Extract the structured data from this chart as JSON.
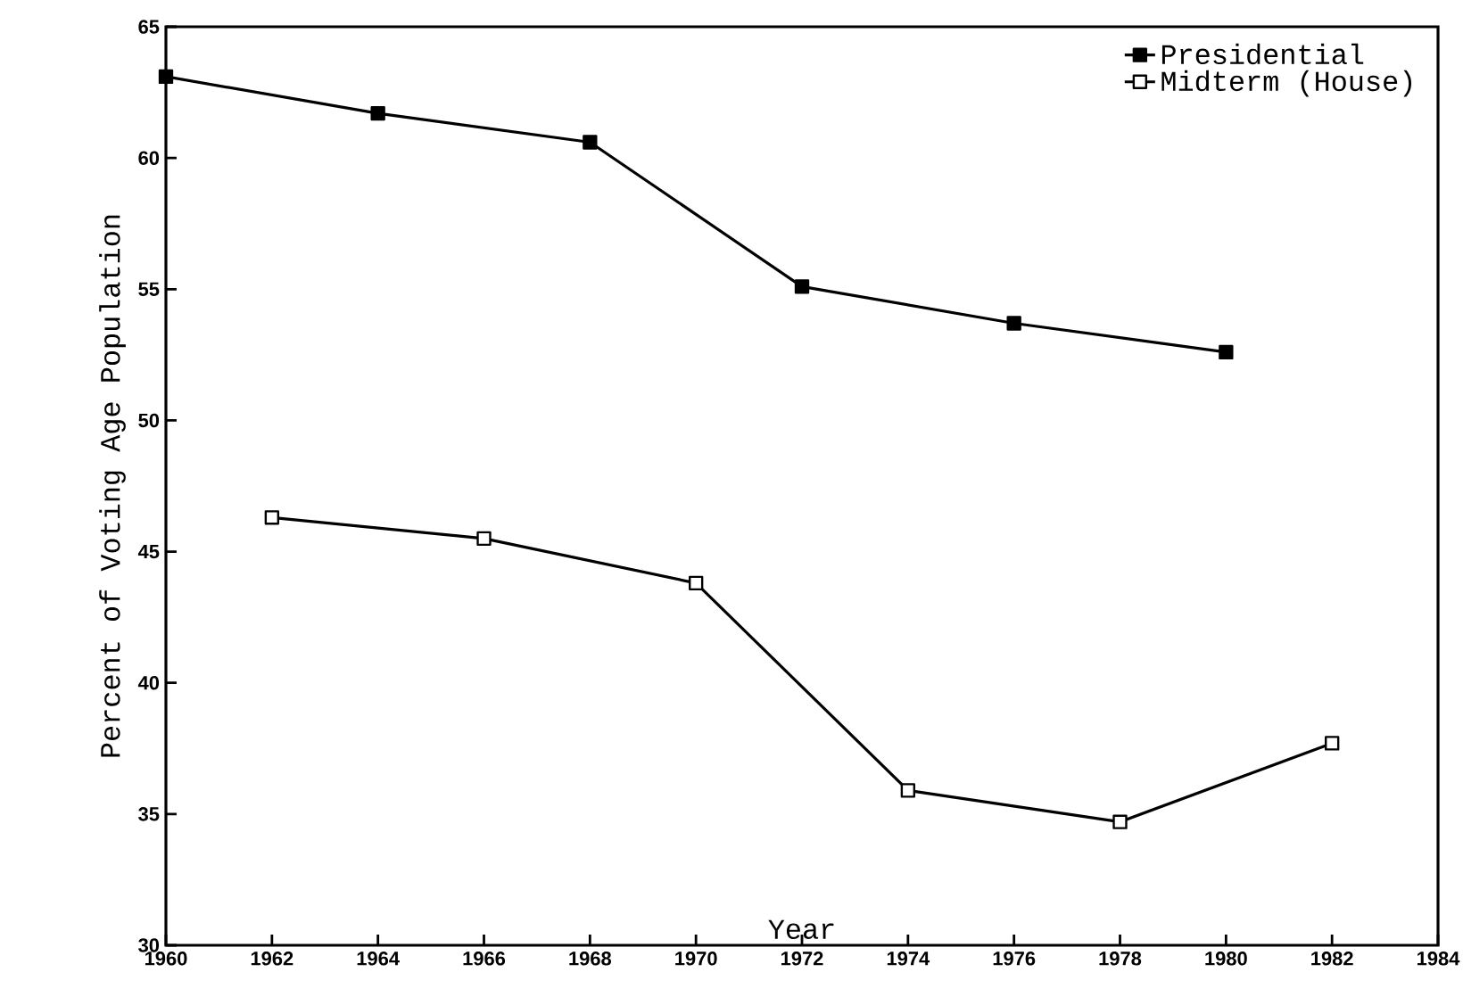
{
  "chart_data": {
    "type": "line",
    "xlabel": "Year",
    "ylabel": "Percent of Voting Age Population",
    "x": [
      1960,
      1962,
      1964,
      1966,
      1968,
      1970,
      1972,
      1974,
      1976,
      1978,
      1980,
      1982
    ],
    "series": [
      {
        "name": "Presidential",
        "color": "#000000",
        "values": [
          63.1,
          null,
          61.7,
          null,
          60.6,
          null,
          55.1,
          null,
          53.7,
          null,
          52.6,
          null
        ]
      },
      {
        "name": "Midterm (House)",
        "color": "#000000",
        "values": [
          null,
          46.3,
          null,
          45.5,
          null,
          43.8,
          null,
          35.9,
          null,
          34.7,
          null,
          37.7
        ]
      }
    ],
    "xlim": [
      1960,
      1984
    ],
    "xticks": [
      1960,
      1962,
      1964,
      1966,
      1968,
      1970,
      1972,
      1974,
      1976,
      1978,
      1980,
      1982,
      1984
    ],
    "ylim": [
      30,
      65
    ],
    "yticks": [
      30,
      35,
      40,
      45,
      50,
      55,
      60,
      65
    ],
    "grid": false,
    "legend": "top right",
    "marker": "square",
    "line_style": "solid"
  }
}
